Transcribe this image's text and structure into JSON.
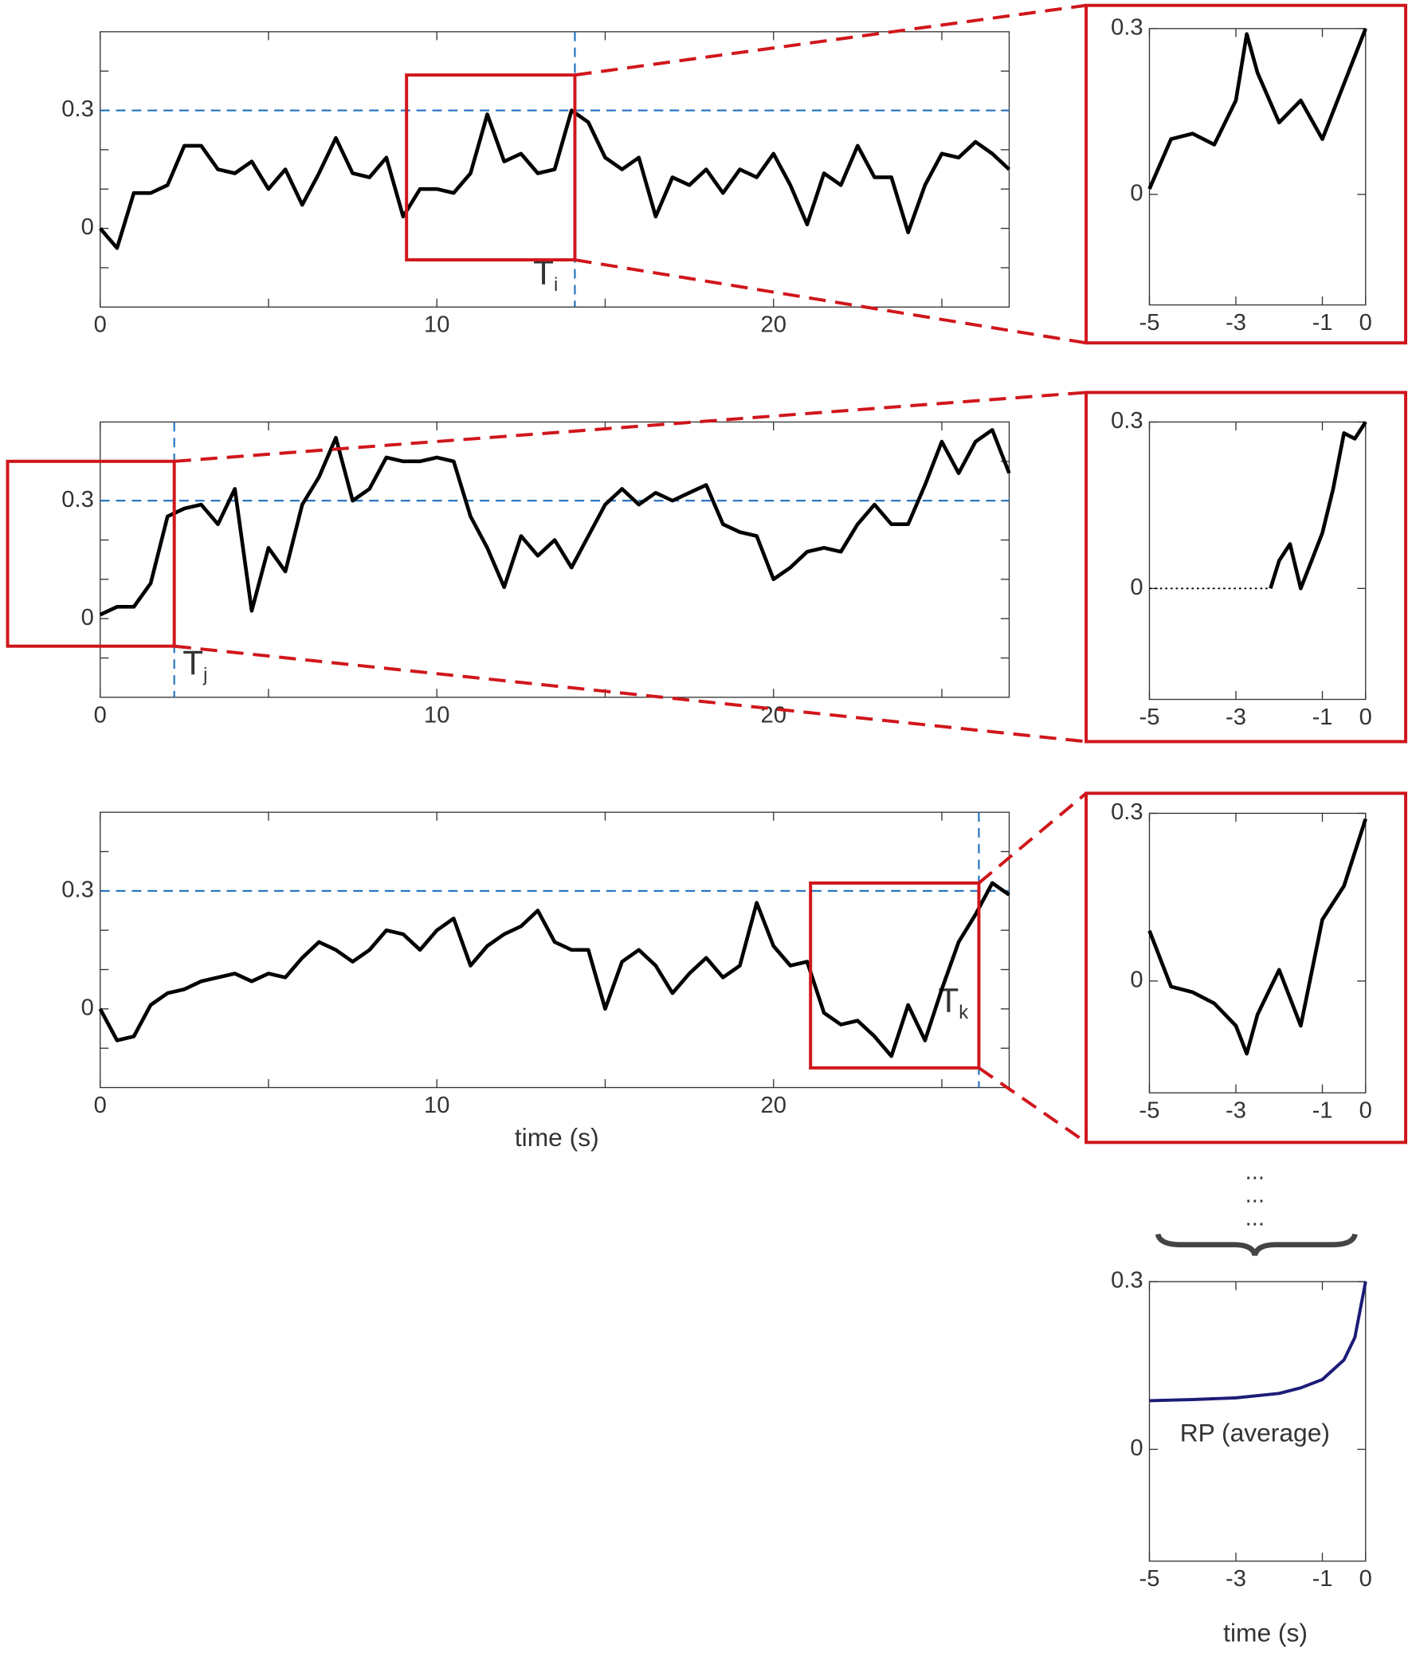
{
  "chart_data": [
    {
      "type": "line",
      "color": "#000000",
      "x": [
        0,
        0.5,
        1,
        1.5,
        2,
        2.5,
        3,
        3.5,
        4,
        4.5,
        5,
        5.5,
        6,
        6.5,
        7,
        7.5,
        8,
        8.5,
        9,
        9.5,
        10,
        10.5,
        11,
        11.5,
        12,
        12.5,
        13,
        13.5,
        14,
        14.5,
        15,
        15.5,
        16,
        16.5,
        17,
        17.5,
        18,
        18.5,
        19,
        19.5,
        20,
        20.5,
        21,
        21.5,
        22,
        22.5,
        23,
        23.5,
        24,
        24.5,
        25,
        25.5,
        26,
        26.5,
        27
      ],
      "values": [
        0,
        -0.05,
        0.09,
        0.09,
        0.11,
        0.21,
        0.21,
        0.15,
        0.14,
        0.17,
        0.1,
        0.15,
        0.06,
        0.14,
        0.23,
        0.14,
        0.13,
        0.18,
        0.03,
        0.1,
        0.1,
        0.09,
        0.14,
        0.29,
        0.17,
        0.19,
        0.14,
        0.15,
        0.3,
        0.27,
        0.18,
        0.15,
        0.18,
        0.03,
        0.13,
        0.11,
        0.15,
        0.09,
        0.15,
        0.13,
        0.19,
        0.11,
        0.01,
        0.14,
        0.11,
        0.21,
        0.13,
        0.13,
        -0.01,
        0.11,
        0.19,
        0.18,
        0.22,
        0.19,
        0.15
      ],
      "xlim": [
        0,
        27
      ],
      "ylim": [
        -0.2,
        0.5
      ],
      "xticks": [
        0,
        10,
        20
      ],
      "xminor_ticks": [
        5,
        15,
        25
      ],
      "yticks": [
        0,
        0.3
      ],
      "yminor_ticks": [
        -0.1,
        0.1,
        0.2,
        0.4
      ],
      "threshold": 0.3,
      "threshold_color": "#1f6fbf",
      "event_x": 14.1,
      "event_label": "T",
      "event_label_sub": "i",
      "window": {
        "x": [
          9.1,
          14.1
        ],
        "y": [
          -0.08,
          0.39
        ],
        "color": "#d0161b"
      }
    },
    {
      "type": "line",
      "color": "#000000",
      "x": [
        0,
        0.5,
        1,
        1.5,
        2,
        2.5,
        3,
        3.5,
        4,
        4.5,
        5,
        5.5,
        6,
        6.5,
        7,
        7.5,
        8,
        8.5,
        9,
        9.5,
        10,
        10.5,
        11,
        11.5,
        12,
        12.5,
        13,
        13.5,
        14,
        14.5,
        15,
        15.5,
        16,
        16.5,
        17,
        17.5,
        18,
        18.5,
        19,
        19.5,
        20,
        20.5,
        21,
        21.5,
        22,
        22.5,
        23,
        23.5,
        24,
        24.5,
        25,
        25.5,
        26,
        26.5,
        27
      ],
      "values": [
        0.01,
        0.03,
        0.03,
        0.09,
        0.26,
        0.28,
        0.29,
        0.24,
        0.33,
        0.02,
        0.18,
        0.12,
        0.29,
        0.36,
        0.46,
        0.3,
        0.33,
        0.41,
        0.4,
        0.4,
        0.41,
        0.4,
        0.26,
        0.18,
        0.08,
        0.21,
        0.16,
        0.2,
        0.13,
        0.21,
        0.29,
        0.33,
        0.29,
        0.32,
        0.3,
        0.32,
        0.34,
        0.24,
        0.22,
        0.21,
        0.1,
        0.13,
        0.17,
        0.18,
        0.17,
        0.24,
        0.29,
        0.24,
        0.24,
        0.34,
        0.45,
        0.37,
        0.45,
        0.48,
        0.37
      ],
      "xlim": [
        0,
        27
      ],
      "ylim": [
        -0.2,
        0.5
      ],
      "xticks": [
        0,
        10,
        20
      ],
      "xminor_ticks": [
        5,
        15,
        25
      ],
      "yticks": [
        0,
        0.3
      ],
      "yminor_ticks": [
        -0.1,
        0.1,
        0.2,
        0.4
      ],
      "threshold": 0.3,
      "threshold_color": "#1f6fbf",
      "event_x": 2.2,
      "event_label": "T",
      "event_label_sub": "j",
      "window": {
        "x": [
          -2.75,
          2.2
        ],
        "y": [
          -0.07,
          0.4
        ],
        "color": "#d0161b"
      }
    },
    {
      "type": "line",
      "color": "#000000",
      "x": [
        0,
        0.5,
        1,
        1.5,
        2,
        2.5,
        3,
        3.5,
        4,
        4.5,
        5,
        5.5,
        6,
        6.5,
        7,
        7.5,
        8,
        8.5,
        9,
        9.5,
        10,
        10.5,
        11,
        11.5,
        12,
        12.5,
        13,
        13.5,
        14,
        14.5,
        15,
        15.5,
        16,
        16.5,
        17,
        17.5,
        18,
        18.5,
        19,
        19.5,
        20,
        20.5,
        21,
        21.5,
        22,
        22.5,
        23,
        23.5,
        24,
        24.5,
        25,
        25.5,
        26,
        26.5,
        27
      ],
      "values": [
        0,
        -0.08,
        -0.07,
        0.01,
        0.04,
        0.05,
        0.07,
        0.08,
        0.09,
        0.07,
        0.09,
        0.08,
        0.13,
        0.17,
        0.15,
        0.12,
        0.15,
        0.2,
        0.19,
        0.15,
        0.2,
        0.23,
        0.11,
        0.16,
        0.19,
        0.21,
        0.25,
        0.17,
        0.15,
        0.15,
        0,
        0.12,
        0.15,
        0.11,
        0.04,
        0.09,
        0.13,
        0.08,
        0.11,
        0.27,
        0.16,
        0.11,
        0.12,
        -0.01,
        -0.04,
        -0.03,
        -0.07,
        -0.12,
        0.01,
        -0.08,
        0.05,
        0.17,
        0.24,
        0.32,
        0.29
      ],
      "xlim": [
        0,
        27
      ],
      "ylim": [
        -0.2,
        0.5
      ],
      "xticks": [
        0,
        10,
        20
      ],
      "xminor_ticks": [
        5,
        15,
        25
      ],
      "yticks": [
        0,
        0.3
      ],
      "yminor_ticks": [
        -0.1,
        0.1,
        0.2,
        0.4
      ],
      "threshold": 0.3,
      "threshold_color": "#1f6fbf",
      "event_x": 26.1,
      "event_label": "T",
      "event_label_sub": "k",
      "window": {
        "x": [
          21.1,
          26.1
        ],
        "y": [
          -0.15,
          0.32
        ],
        "color": "#d0161b"
      },
      "x_label": "time (s)"
    },
    {
      "type": "line",
      "color": "#000000",
      "x": [
        -5,
        -4.5,
        -4,
        -3.5,
        -3,
        -2.75,
        -2.5,
        -2,
        -1.5,
        -1,
        -0.5,
        0
      ],
      "values": [
        0.01,
        0.1,
        0.11,
        0.09,
        0.17,
        0.29,
        0.22,
        0.13,
        0.17,
        0.1,
        0.2,
        0.3
      ],
      "xlim": [
        -5,
        0
      ],
      "ylim": [
        -0.2,
        0.3
      ],
      "xticks": [
        -5,
        -3,
        -1,
        0
      ],
      "yticks": [
        0,
        0.3
      ]
    },
    {
      "type": "line",
      "color": "#000000",
      "x": [
        -2.2,
        -2,
        -1.75,
        -1.5,
        -1.25,
        -1,
        -0.75,
        -0.5,
        -0.25,
        0
      ],
      "values": [
        0,
        0.05,
        0.08,
        0,
        0.05,
        0.1,
        0.18,
        0.28,
        0.27,
        0.3
      ],
      "padding": {
        "x": [
          -5,
          -2.2
        ],
        "value": 0
      },
      "xlim": [
        -5,
        0
      ],
      "ylim": [
        -0.2,
        0.3
      ],
      "xticks": [
        -5,
        -3,
        -1,
        0
      ],
      "yticks": [
        0,
        0.3
      ]
    },
    {
      "type": "line",
      "color": "#000000",
      "x": [
        -5,
        -4.5,
        -4,
        -3.5,
        -3,
        -2.75,
        -2.5,
        -2,
        -1.5,
        -1,
        -0.5,
        0
      ],
      "values": [
        0.09,
        -0.01,
        -0.02,
        -0.04,
        -0.08,
        -0.13,
        -0.06,
        0.02,
        -0.08,
        0.11,
        0.17,
        0.29
      ],
      "xlim": [
        -5,
        0
      ],
      "ylim": [
        -0.2,
        0.3
      ],
      "xticks": [
        -5,
        -3,
        -1,
        0
      ],
      "yticks": [
        0,
        0.3
      ]
    },
    {
      "type": "line",
      "color": "#1c1c78",
      "x": [
        -5,
        -4,
        -3,
        -2,
        -1.5,
        -1,
        -0.5,
        -0.25,
        0
      ],
      "values": [
        0.087,
        0.089,
        0.092,
        0.1,
        0.11,
        0.125,
        0.16,
        0.2,
        0.3
      ],
      "xlim": [
        -5,
        0
      ],
      "ylim": [
        -0.2,
        0.3
      ],
      "xticks": [
        -5,
        -3,
        -1,
        0
      ],
      "yticks": [
        0,
        0.3
      ],
      "annotation": "RP (average)",
      "x_label": "time (s)"
    }
  ],
  "ellipsis": [
    "...",
    "...",
    "..."
  ]
}
